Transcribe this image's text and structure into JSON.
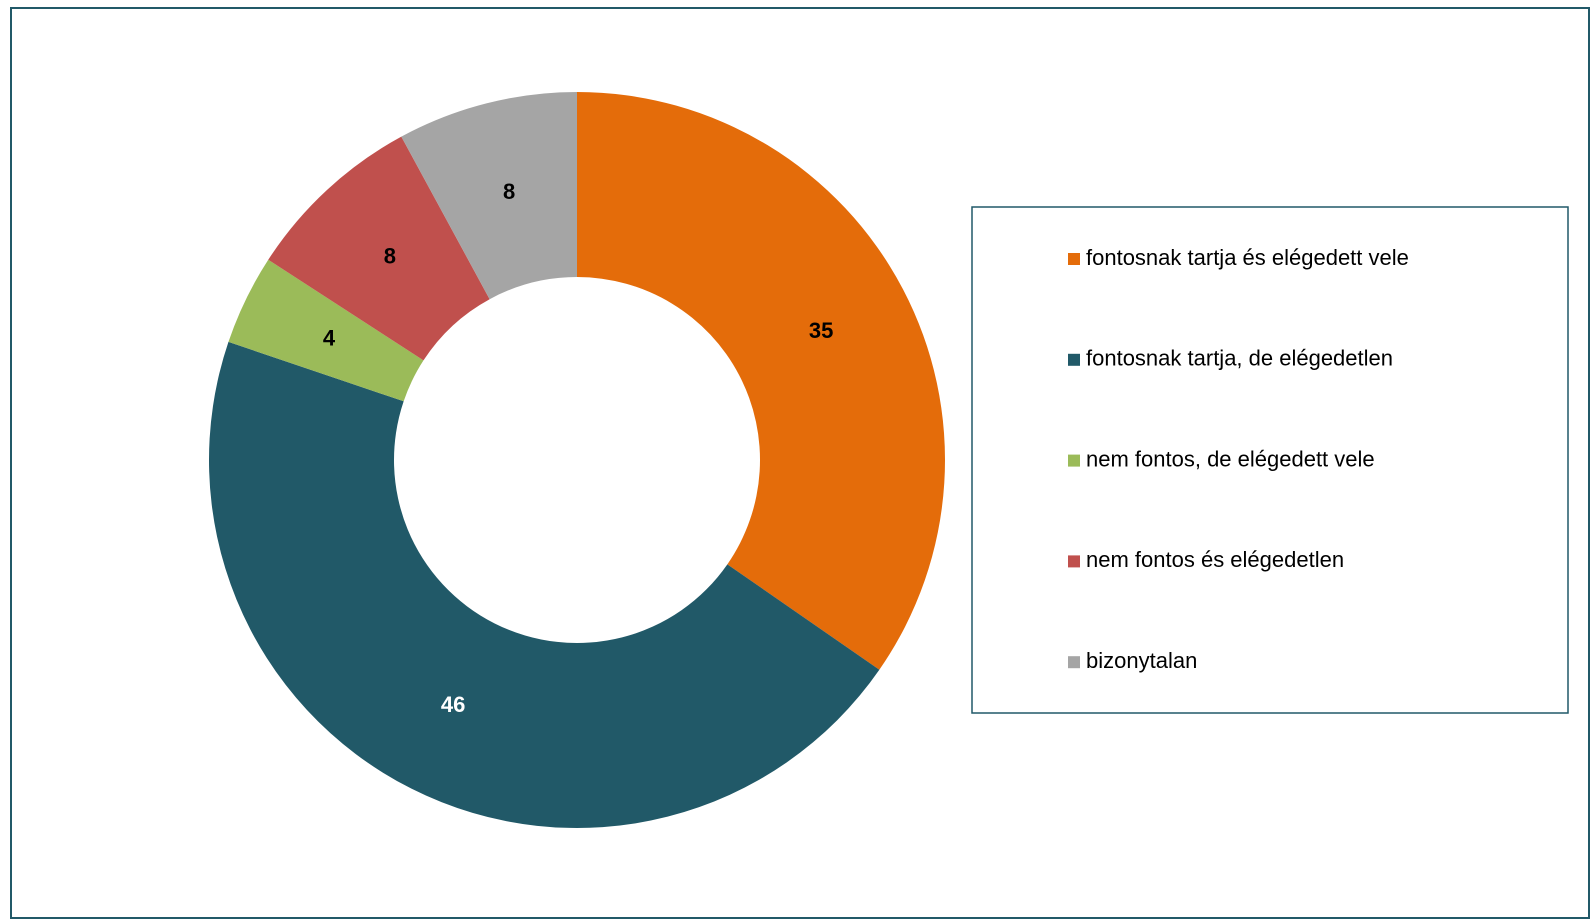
{
  "chart_data": {
    "type": "pie",
    "categories": [
      "fontosnak tartja és elégedett vele",
      "fontosnak tartja, de elégedetlen",
      "nem fontos, de elégedett vele",
      "nem fontos és elégedetlen",
      "bizonytalan"
    ],
    "values": [
      35,
      46,
      4,
      8,
      8
    ],
    "colors": [
      "#e46c0a",
      "#215968",
      "#9bbb59",
      "#c0504d",
      "#a5a5a5"
    ],
    "label_colors": [
      "#000000",
      "#ffffff",
      "#000000",
      "#000000",
      "#000000"
    ],
    "legend": "right"
  }
}
